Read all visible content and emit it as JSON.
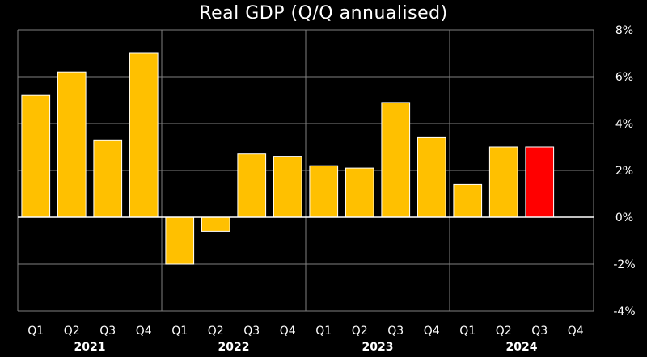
{
  "chart_data": {
    "type": "bar",
    "title": "Real GDP (Q/Q annualised)",
    "xlabel": "",
    "ylabel": "",
    "ylim": [
      -4,
      8
    ],
    "y_ticks": [
      "8%",
      "6%",
      "4%",
      "2%",
      "0%",
      "-2%",
      "-4%"
    ],
    "y_tick_values": [
      8,
      6,
      4,
      2,
      0,
      -2,
      -4
    ],
    "categories": [
      "Q1",
      "Q2",
      "Q3",
      "Q4",
      "Q1",
      "Q2",
      "Q3",
      "Q4",
      "Q1",
      "Q2",
      "Q3",
      "Q4",
      "Q1",
      "Q2",
      "Q3",
      "Q4"
    ],
    "years": [
      "2021",
      "2022",
      "2023",
      "2024"
    ],
    "values": [
      5.2,
      6.2,
      3.3,
      7.0,
      -2.0,
      -0.6,
      2.7,
      2.6,
      2.2,
      2.1,
      4.9,
      3.4,
      1.4,
      3.0,
      3.0,
      null
    ],
    "highlight_index": 14,
    "colors": {
      "bar": "#FFC000",
      "highlight": "#FF0000",
      "background": "#000000",
      "grid": "#808080",
      "zero_line": "#FFFFFF"
    },
    "grid": true,
    "legend": "none"
  }
}
